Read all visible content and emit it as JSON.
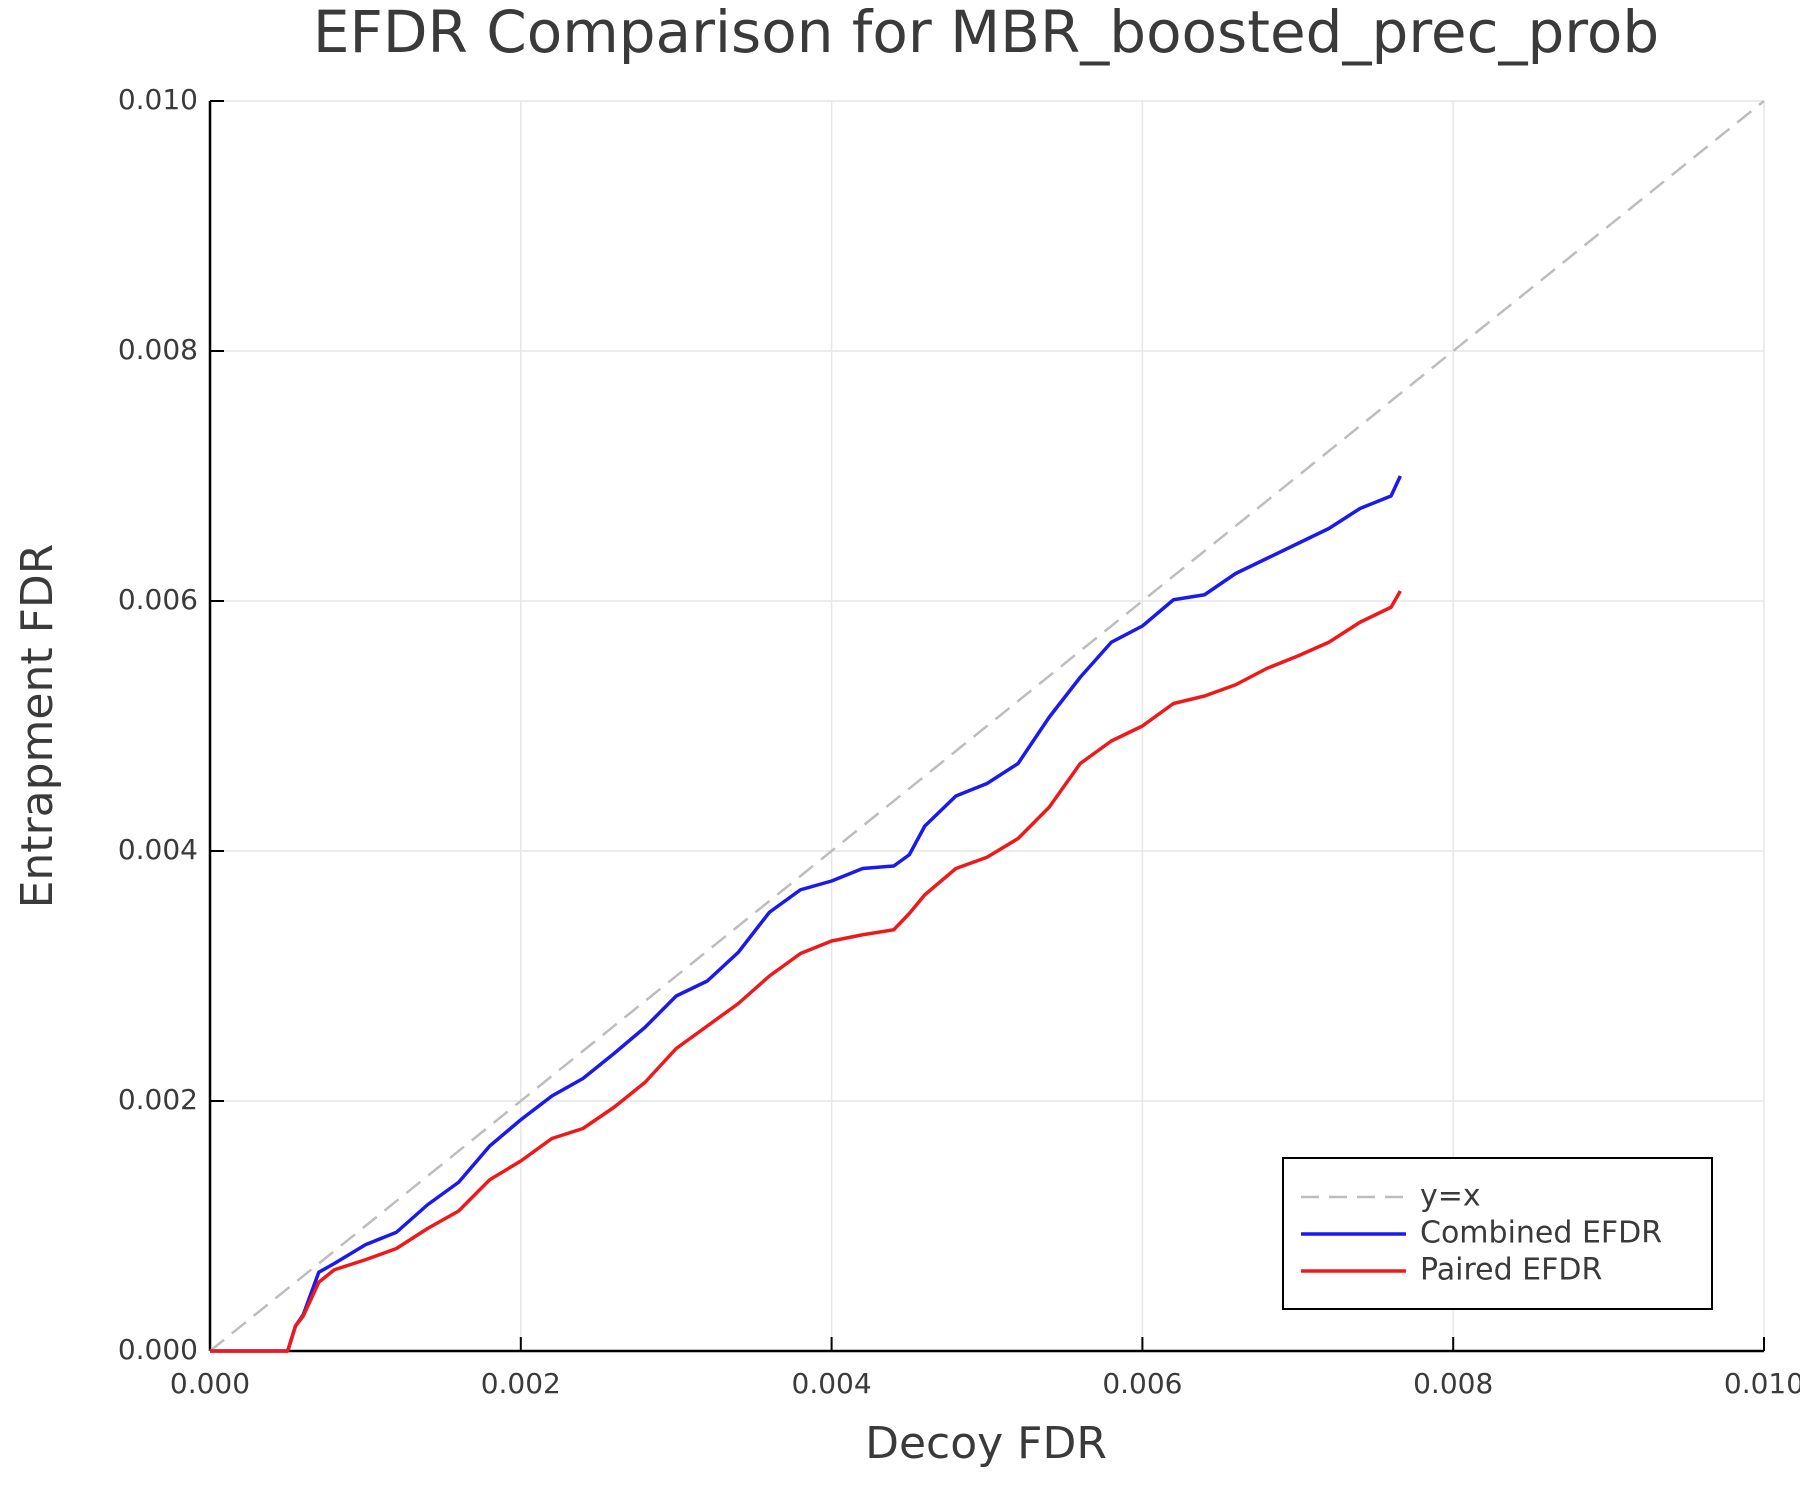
{
  "chart_data": {
    "type": "line",
    "title": "EFDR Comparison for MBR_boosted_prec_prob",
    "x_label": "Decoy FDR",
    "y_label": "Entrapment FDR",
    "xlim": [
      0,
      0.01
    ],
    "ylim": [
      0,
      0.01
    ],
    "xticks": [
      {
        "value": 0,
        "label": "0.000"
      },
      {
        "value": 0.002,
        "label": "0.002"
      },
      {
        "value": 0.004,
        "label": "0.004"
      },
      {
        "value": 0.006,
        "label": "0.006"
      },
      {
        "value": 0.008,
        "label": "0.008"
      },
      {
        "value": 0.01,
        "label": "0.010"
      }
    ],
    "yticks": [
      {
        "value": 0,
        "label": "0.000"
      },
      {
        "value": 0.002,
        "label": "0.002"
      },
      {
        "value": 0.004,
        "label": "0.004"
      },
      {
        "value": 0.006,
        "label": "0.006"
      },
      {
        "value": 0.008,
        "label": "0.008"
      },
      {
        "value": 0.01,
        "label": "0.010"
      }
    ],
    "grid": true,
    "legend": "bottom right",
    "series": [
      {
        "name": "y=x",
        "color": "#bdbdbd",
        "dash": true,
        "x": [
          0,
          0.01
        ],
        "values": [
          0,
          0.01
        ]
      },
      {
        "name": "Combined EFDR",
        "color": "#1a1aee",
        "x": [
          0,
          0.0005,
          0.00055,
          0.0006,
          0.0007,
          0.0008,
          0.001,
          0.0012,
          0.0014,
          0.0016,
          0.0018,
          0.002,
          0.0022,
          0.0024,
          0.0026,
          0.0028,
          0.003,
          0.0032,
          0.0034,
          0.0036,
          0.0038,
          0.004,
          0.0042,
          0.0044,
          0.0045,
          0.0046,
          0.0048,
          0.005,
          0.0052,
          0.0054,
          0.0056,
          0.0058,
          0.006,
          0.0062,
          0.0064,
          0.0066,
          0.0068,
          0.007,
          0.0072,
          0.0074,
          0.0076,
          0.00766
        ],
        "values": [
          0,
          0,
          0.0002,
          0.00029,
          0.00063,
          0.0007,
          0.00085,
          0.00095,
          0.00117,
          0.00135,
          0.00164,
          0.00185,
          0.00204,
          0.00218,
          0.00238,
          0.00259,
          0.00284,
          0.00296,
          0.00319,
          0.00351,
          0.00369,
          0.00376,
          0.00386,
          0.00388,
          0.00397,
          0.0042,
          0.00444,
          0.00454,
          0.0047,
          0.00507,
          0.00539,
          0.00567,
          0.0058,
          0.00601,
          0.00605,
          0.00622,
          0.00634,
          0.00646,
          0.00658,
          0.00674,
          0.00684,
          0.007
        ]
      },
      {
        "name": "Paired EFDR",
        "color": "#ee1a1a",
        "x": [
          0,
          0.0005,
          0.00055,
          0.0006,
          0.0007,
          0.0008,
          0.001,
          0.0012,
          0.0014,
          0.0016,
          0.0018,
          0.002,
          0.0022,
          0.0024,
          0.0026,
          0.0028,
          0.003,
          0.0032,
          0.0034,
          0.0036,
          0.0038,
          0.004,
          0.0042,
          0.0044,
          0.0045,
          0.0046,
          0.0048,
          0.005,
          0.0052,
          0.0054,
          0.0056,
          0.0058,
          0.006,
          0.0062,
          0.0064,
          0.0066,
          0.0068,
          0.007,
          0.0072,
          0.0074,
          0.0076,
          0.00766
        ],
        "values": [
          0,
          0,
          0.0002,
          0.00028,
          0.00055,
          0.00065,
          0.00073,
          0.00082,
          0.00098,
          0.00112,
          0.00137,
          0.00152,
          0.0017,
          0.00178,
          0.00195,
          0.00215,
          0.00242,
          0.0026,
          0.00278,
          0.003,
          0.00318,
          0.00328,
          0.00333,
          0.00337,
          0.0035,
          0.00365,
          0.00386,
          0.00395,
          0.0041,
          0.00435,
          0.0047,
          0.00488,
          0.005,
          0.00518,
          0.00524,
          0.00533,
          0.00546,
          0.00556,
          0.00567,
          0.00583,
          0.00595,
          0.00608
        ]
      }
    ]
  }
}
